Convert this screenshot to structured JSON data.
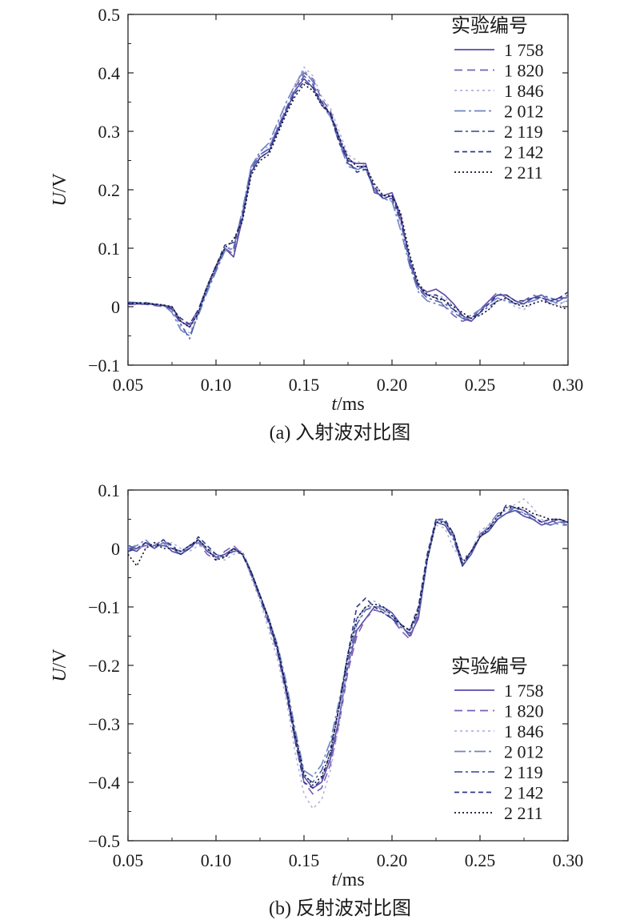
{
  "chart_data": [
    {
      "type": "line",
      "caption": "(a) 入射波对比图",
      "xlabel_italic": "t",
      "xlabel_unit": "/ms",
      "ylabel_italic": "U",
      "ylabel_unit": "/V",
      "xlim": [
        0.05,
        0.3
      ],
      "ylim": [
        -0.1,
        0.5
      ],
      "x_ticks": [
        0.05,
        0.1,
        0.15,
        0.2,
        0.25,
        0.3
      ],
      "x_tick_labels": [
        "0.05",
        "0.10",
        "0.15",
        "0.20",
        "0.25",
        "0.30"
      ],
      "y_ticks": [
        -0.1,
        0,
        0.1,
        0.2,
        0.3,
        0.4,
        0.5
      ],
      "y_tick_labels": [
        "−0.1",
        "0",
        "0.1",
        "0.2",
        "0.3",
        "0.4",
        "0.5"
      ],
      "grid": false,
      "legend_title": "实验编号",
      "legend_position": "top-right",
      "x": [
        0.05,
        0.06,
        0.07,
        0.075,
        0.08,
        0.085,
        0.09,
        0.095,
        0.1,
        0.105,
        0.11,
        0.115,
        0.12,
        0.125,
        0.13,
        0.135,
        0.14,
        0.145,
        0.15,
        0.155,
        0.16,
        0.165,
        0.17,
        0.175,
        0.18,
        0.185,
        0.19,
        0.195,
        0.2,
        0.205,
        0.21,
        0.215,
        0.22,
        0.225,
        0.23,
        0.235,
        0.24,
        0.245,
        0.25,
        0.255,
        0.26,
        0.265,
        0.27,
        0.275,
        0.28,
        0.285,
        0.29,
        0.295,
        0.3
      ],
      "series": [
        {
          "name": "1 758",
          "color": "#5a4aa8",
          "dash": "",
          "values": [
            0.005,
            0.005,
            0.002,
            0.0,
            -0.025,
            -0.035,
            -0.01,
            0.03,
            0.065,
            0.1,
            0.085,
            0.15,
            0.23,
            0.255,
            0.265,
            0.3,
            0.335,
            0.37,
            0.39,
            0.375,
            0.345,
            0.33,
            0.285,
            0.25,
            0.245,
            0.245,
            0.195,
            0.19,
            0.195,
            0.155,
            0.08,
            0.035,
            0.025,
            0.03,
            0.02,
            0.005,
            -0.015,
            -0.025,
            -0.01,
            0.01,
            0.02,
            0.02,
            0.01,
            0.005,
            0.015,
            0.02,
            0.01,
            0.015,
            0.015
          ]
        },
        {
          "name": "1 820",
          "color": "#7a5fb4",
          "dash": "10,6",
          "values": [
            0.004,
            0.004,
            0.0,
            -0.005,
            -0.028,
            -0.03,
            -0.005,
            0.035,
            0.07,
            0.1,
            0.09,
            0.16,
            0.24,
            0.26,
            0.27,
            0.305,
            0.34,
            0.375,
            0.4,
            0.39,
            0.355,
            0.335,
            0.29,
            0.255,
            0.24,
            0.24,
            0.2,
            0.185,
            0.19,
            0.15,
            0.075,
            0.03,
            0.02,
            0.015,
            0.0,
            -0.015,
            -0.025,
            -0.02,
            -0.005,
            0.01,
            0.025,
            0.015,
            0.005,
            0.01,
            0.02,
            0.015,
            0.005,
            0.01,
            0.02
          ]
        },
        {
          "name": "1 846",
          "color": "#b3b3dd",
          "dash": "3,4",
          "values": [
            0.006,
            0.006,
            0.002,
            -0.008,
            -0.035,
            -0.045,
            -0.01,
            0.03,
            0.065,
            0.095,
            0.1,
            0.16,
            0.235,
            0.265,
            0.275,
            0.31,
            0.35,
            0.38,
            0.41,
            0.395,
            0.36,
            0.34,
            0.3,
            0.26,
            0.25,
            0.24,
            0.21,
            0.19,
            0.18,
            0.14,
            0.08,
            0.04,
            0.02,
            0.02,
            0.015,
            0.0,
            -0.02,
            -0.02,
            -0.015,
            -0.005,
            0.01,
            0.01,
            0.0,
            -0.005,
            0.005,
            0.02,
            0.01,
            0.0,
            0.015
          ]
        },
        {
          "name": "2 012",
          "color": "#6f85c4",
          "dash": "14,4,3,4",
          "values": [
            0.008,
            0.006,
            0.003,
            -0.01,
            -0.04,
            -0.05,
            -0.015,
            0.025,
            0.06,
            0.095,
            0.1,
            0.165,
            0.24,
            0.265,
            0.28,
            0.315,
            0.35,
            0.38,
            0.405,
            0.385,
            0.345,
            0.325,
            0.28,
            0.24,
            0.235,
            0.235,
            0.2,
            0.185,
            0.18,
            0.13,
            0.07,
            0.025,
            0.01,
            0.005,
            0.0,
            -0.01,
            -0.02,
            -0.015,
            -0.005,
            0.005,
            0.015,
            0.01,
            0.005,
            0.005,
            0.01,
            0.015,
            0.01,
            0.005,
            0.01
          ]
        },
        {
          "name": "2 119",
          "color": "#4f5fa8",
          "dash": "10,4,3,4",
          "values": [
            0.007,
            0.007,
            0.002,
            -0.005,
            -0.03,
            -0.055,
            -0.01,
            0.03,
            0.065,
            0.1,
            0.1,
            0.155,
            0.235,
            0.26,
            0.27,
            0.305,
            0.34,
            0.37,
            0.395,
            0.38,
            0.35,
            0.33,
            0.29,
            0.245,
            0.235,
            0.24,
            0.2,
            0.185,
            0.185,
            0.145,
            0.075,
            0.03,
            0.015,
            0.01,
            0.005,
            -0.005,
            -0.02,
            -0.025,
            -0.01,
            0.0,
            0.01,
            0.015,
            0.005,
            0.005,
            0.015,
            0.02,
            0.015,
            0.01,
            0.02
          ]
        },
        {
          "name": "2 142",
          "color": "#2d3a8c",
          "dash": "6,4",
          "values": [
            0.005,
            0.005,
            0.002,
            -0.003,
            -0.02,
            -0.03,
            -0.005,
            0.035,
            0.07,
            0.105,
            0.11,
            0.155,
            0.23,
            0.255,
            0.265,
            0.3,
            0.335,
            0.365,
            0.385,
            0.375,
            0.35,
            0.33,
            0.28,
            0.25,
            0.23,
            0.235,
            0.205,
            0.185,
            0.19,
            0.15,
            0.085,
            0.035,
            0.02,
            0.02,
            0.01,
            -0.005,
            -0.015,
            -0.02,
            -0.01,
            0.005,
            0.02,
            0.02,
            0.01,
            0.01,
            0.015,
            0.015,
            0.01,
            0.015,
            0.025
          ]
        },
        {
          "name": "2 211",
          "color": "#101028",
          "dash": "2,3",
          "values": [
            0.006,
            0.006,
            0.003,
            0.0,
            -0.025,
            -0.035,
            -0.01,
            0.035,
            0.07,
            0.1,
            0.115,
            0.145,
            0.225,
            0.25,
            0.26,
            0.295,
            0.33,
            0.36,
            0.38,
            0.37,
            0.345,
            0.33,
            0.29,
            0.255,
            0.24,
            0.24,
            0.21,
            0.19,
            0.19,
            0.16,
            0.09,
            0.04,
            0.02,
            0.015,
            0.01,
            0.0,
            -0.01,
            -0.02,
            -0.015,
            -0.005,
            0.01,
            0.015,
            0.005,
            0.0,
            0.005,
            0.01,
            0.005,
            0.0,
            -0.005
          ]
        }
      ]
    },
    {
      "type": "line",
      "caption": "(b) 反射波对比图",
      "xlabel_italic": "t",
      "xlabel_unit": "/ms",
      "ylabel_italic": "U",
      "ylabel_unit": "/V",
      "xlim": [
        0.05,
        0.3
      ],
      "ylim": [
        -0.5,
        0.1
      ],
      "x_ticks": [
        0.05,
        0.1,
        0.15,
        0.2,
        0.25,
        0.3
      ],
      "x_tick_labels": [
        "0.05",
        "0.10",
        "0.15",
        "0.20",
        "0.25",
        "0.30"
      ],
      "y_ticks": [
        -0.5,
        -0.4,
        -0.3,
        -0.2,
        -0.1,
        0,
        0.1
      ],
      "y_tick_labels": [
        "−0.5",
        "−0.4",
        "−0.3",
        "−0.2",
        "−0.1",
        "0",
        "0.1"
      ],
      "grid": false,
      "legend_title": "实验编号",
      "legend_position": "right",
      "x": [
        0.05,
        0.055,
        0.06,
        0.065,
        0.07,
        0.075,
        0.08,
        0.085,
        0.09,
        0.095,
        0.1,
        0.105,
        0.11,
        0.115,
        0.12,
        0.125,
        0.13,
        0.135,
        0.14,
        0.145,
        0.15,
        0.155,
        0.16,
        0.165,
        0.17,
        0.175,
        0.18,
        0.185,
        0.19,
        0.195,
        0.2,
        0.205,
        0.21,
        0.215,
        0.22,
        0.225,
        0.23,
        0.235,
        0.24,
        0.245,
        0.25,
        0.255,
        0.26,
        0.265,
        0.27,
        0.275,
        0.28,
        0.285,
        0.29,
        0.295,
        0.3
      ],
      "series": [
        {
          "name": "1 758",
          "color": "#5a4aa8",
          "dash": "",
          "values": [
            0.0,
            -0.005,
            0.01,
            0.0,
            0.01,
            -0.005,
            -0.01,
            0.0,
            0.015,
            -0.005,
            -0.015,
            -0.01,
            0.0,
            -0.01,
            -0.04,
            -0.08,
            -0.12,
            -0.17,
            -0.24,
            -0.32,
            -0.39,
            -0.41,
            -0.4,
            -0.36,
            -0.29,
            -0.2,
            -0.14,
            -0.12,
            -0.1,
            -0.1,
            -0.11,
            -0.13,
            -0.15,
            -0.12,
            -0.02,
            0.045,
            0.04,
            0.02,
            -0.03,
            -0.01,
            0.02,
            0.03,
            0.05,
            0.06,
            0.065,
            0.055,
            0.05,
            0.04,
            0.045,
            0.05,
            0.045
          ]
        },
        {
          "name": "1 820",
          "color": "#7a5fb4",
          "dash": "10,6",
          "values": [
            -0.005,
            0.0,
            0.005,
            0.005,
            0.015,
            0.0,
            -0.005,
            0.005,
            0.01,
            -0.01,
            -0.02,
            -0.005,
            0.005,
            -0.01,
            -0.045,
            -0.085,
            -0.13,
            -0.18,
            -0.25,
            -0.33,
            -0.4,
            -0.42,
            -0.41,
            -0.37,
            -0.3,
            -0.21,
            -0.15,
            -0.12,
            -0.105,
            -0.11,
            -0.12,
            -0.14,
            -0.155,
            -0.115,
            -0.015,
            0.05,
            0.045,
            0.025,
            -0.025,
            -0.005,
            0.025,
            0.035,
            0.055,
            0.06,
            0.07,
            0.065,
            0.055,
            0.045,
            0.05,
            0.04,
            0.04
          ]
        },
        {
          "name": "1 846",
          "color": "#b3b3dd",
          "dash": "3,4",
          "values": [
            0.005,
            0.005,
            0.0,
            0.01,
            0.005,
            0.01,
            0.0,
            -0.005,
            0.005,
            0.0,
            -0.01,
            -0.02,
            -0.01,
            -0.005,
            -0.05,
            -0.09,
            -0.14,
            -0.19,
            -0.26,
            -0.35,
            -0.42,
            -0.445,
            -0.43,
            -0.38,
            -0.3,
            -0.2,
            -0.13,
            -0.1,
            -0.09,
            -0.1,
            -0.12,
            -0.135,
            -0.14,
            -0.1,
            -0.01,
            0.04,
            0.035,
            0.0,
            -0.02,
            -0.005,
            0.03,
            0.04,
            0.055,
            0.07,
            0.075,
            0.085,
            0.07,
            0.05,
            0.04,
            0.045,
            0.04
          ]
        },
        {
          "name": "2 012",
          "color": "#6f85c4",
          "dash": "14,4,3,4",
          "values": [
            0.0,
            0.005,
            0.015,
            0.0,
            0.01,
            0.005,
            -0.005,
            0.0,
            0.01,
            0.0,
            -0.01,
            -0.015,
            -0.005,
            -0.005,
            -0.04,
            -0.08,
            -0.12,
            -0.165,
            -0.23,
            -0.31,
            -0.38,
            -0.39,
            -0.37,
            -0.33,
            -0.26,
            -0.18,
            -0.12,
            -0.1,
            -0.1,
            -0.1,
            -0.115,
            -0.13,
            -0.14,
            -0.11,
            -0.02,
            0.05,
            0.045,
            0.02,
            -0.02,
            -0.005,
            0.02,
            0.04,
            0.06,
            0.065,
            0.07,
            0.06,
            0.055,
            0.045,
            0.04,
            0.045,
            0.04
          ]
        },
        {
          "name": "2 119",
          "color": "#4f5fa8",
          "dash": "10,4,3,4",
          "values": [
            0.005,
            0.0,
            0.01,
            0.005,
            0.005,
            0.0,
            -0.01,
            0.005,
            0.015,
            0.0,
            -0.015,
            -0.01,
            -0.005,
            -0.01,
            -0.045,
            -0.085,
            -0.125,
            -0.175,
            -0.245,
            -0.325,
            -0.39,
            -0.4,
            -0.38,
            -0.34,
            -0.27,
            -0.19,
            -0.13,
            -0.105,
            -0.1,
            -0.105,
            -0.12,
            -0.135,
            -0.145,
            -0.11,
            -0.02,
            0.045,
            0.04,
            0.015,
            -0.03,
            -0.01,
            0.02,
            0.035,
            0.05,
            0.06,
            0.065,
            0.06,
            0.05,
            0.045,
            0.04,
            0.045,
            0.045
          ]
        },
        {
          "name": "2 142",
          "color": "#2d3a8c",
          "dash": "6,4",
          "values": [
            -0.005,
            0.0,
            0.01,
            0.0,
            0.015,
            0.005,
            -0.01,
            0.0,
            0.02,
            0.005,
            -0.01,
            -0.015,
            0.0,
            -0.01,
            -0.04,
            -0.08,
            -0.125,
            -0.175,
            -0.245,
            -0.33,
            -0.4,
            -0.41,
            -0.395,
            -0.35,
            -0.27,
            -0.18,
            -0.1,
            -0.085,
            -0.1,
            -0.11,
            -0.12,
            -0.13,
            -0.14,
            -0.1,
            -0.01,
            0.05,
            0.05,
            0.025,
            -0.03,
            -0.005,
            0.02,
            0.03,
            0.05,
            0.075,
            0.07,
            0.065,
            0.055,
            0.045,
            0.05,
            0.05,
            0.045
          ]
        },
        {
          "name": "2 211",
          "color": "#101028",
          "dash": "2,3",
          "values": [
            -0.01,
            -0.03,
            0.0,
            0.01,
            0.0,
            0.0,
            -0.005,
            0.005,
            0.015,
            0.0,
            -0.02,
            -0.015,
            0.0,
            -0.01,
            -0.04,
            -0.08,
            -0.12,
            -0.17,
            -0.24,
            -0.32,
            -0.385,
            -0.405,
            -0.39,
            -0.35,
            -0.27,
            -0.18,
            -0.12,
            -0.1,
            -0.095,
            -0.1,
            -0.115,
            -0.13,
            -0.14,
            -0.105,
            -0.02,
            0.045,
            0.045,
            0.025,
            -0.025,
            -0.005,
            0.02,
            0.035,
            0.055,
            0.07,
            0.07,
            0.07,
            0.06,
            0.055,
            0.05,
            0.05,
            0.045
          ]
        }
      ]
    }
  ]
}
